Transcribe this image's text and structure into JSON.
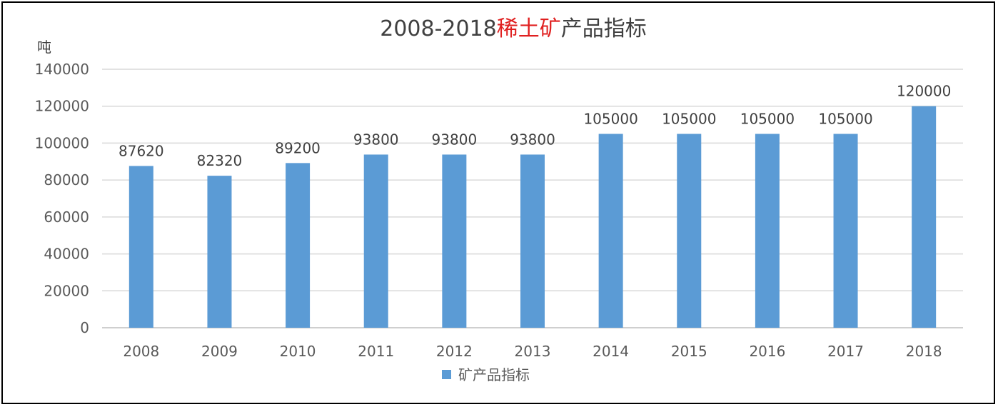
{
  "chart_data": {
    "type": "bar",
    "title_parts": [
      {
        "text": "2008-2018",
        "color": "#404040"
      },
      {
        "text": "稀土矿",
        "color": "#e02020"
      },
      {
        "text": "产品指标",
        "color": "#404040"
      }
    ],
    "ylabel": "吨",
    "xlabel": "",
    "categories": [
      "2008",
      "2009",
      "2010",
      "2011",
      "2012",
      "2013",
      "2014",
      "2015",
      "2016",
      "2017",
      "2018"
    ],
    "series": [
      {
        "name": "矿产品指标",
        "color": "#5b9bd5",
        "values": [
          87620,
          82320,
          89200,
          93800,
          93800,
          93800,
          105000,
          105000,
          105000,
          105000,
          120000
        ]
      }
    ],
    "ylim": [
      0,
      140000
    ],
    "yticks": [
      0,
      20000,
      40000,
      60000,
      80000,
      100000,
      120000,
      140000
    ],
    "grid": true,
    "legend_position": "bottom",
    "gridline_color": "#d9d9d9"
  }
}
